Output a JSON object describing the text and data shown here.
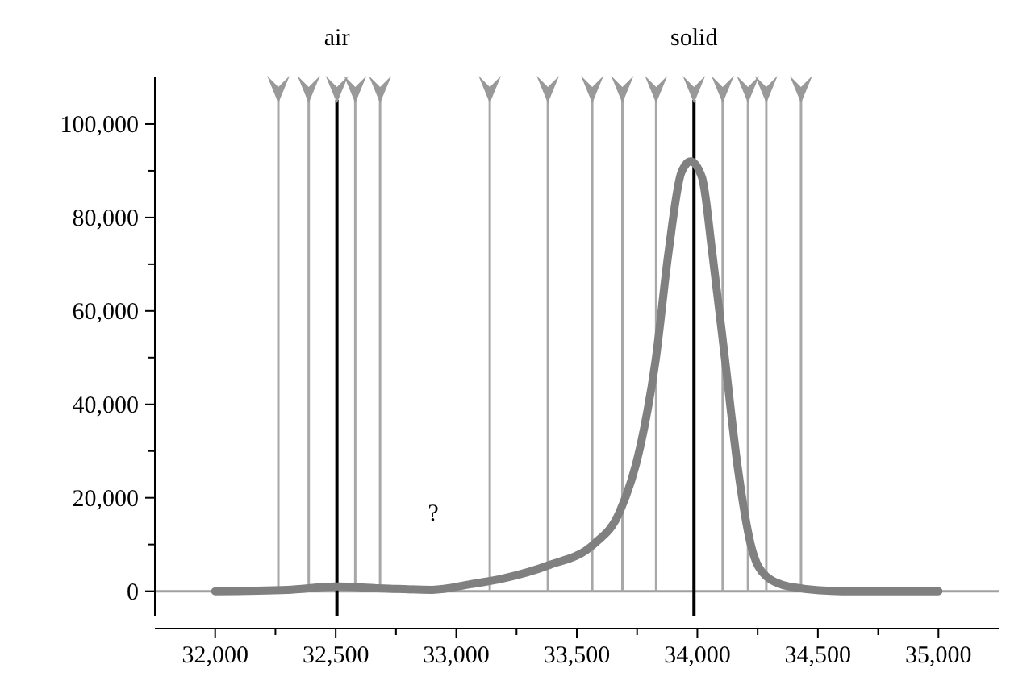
{
  "chart_data": {
    "type": "line",
    "x": [
      32000,
      32300,
      32500,
      32700,
      32900,
      33060,
      33200,
      33380,
      33571,
      33678,
      33763,
      33827,
      33880,
      33934,
      33972,
      34019,
      34062,
      34115,
      34168,
      34221,
      34285,
      34381,
      34600,
      35000
    ],
    "series": [
      {
        "color": "#808080",
        "values": [
          0,
          300,
          1000,
          600,
          300,
          1500,
          2800,
          5500,
          10100,
          17000,
          30900,
          49500,
          72400,
          89700,
          92000,
          88600,
          72400,
          49500,
          26300,
          10100,
          3200,
          1000,
          0,
          0
        ]
      }
    ],
    "xlim": [
      31750,
      35250
    ],
    "xticks": [
      {
        "value": 32000,
        "label": "32,000"
      },
      {
        "value": 32250,
        "label": null
      },
      {
        "value": 32500,
        "label": "32,500"
      },
      {
        "value": 32750,
        "label": null
      },
      {
        "value": 33000,
        "label": "33,000"
      },
      {
        "value": 33250,
        "label": null
      },
      {
        "value": 33500,
        "label": "33,500"
      },
      {
        "value": 33750,
        "label": null
      },
      {
        "value": 34000,
        "label": "34,000"
      },
      {
        "value": 34250,
        "label": null
      },
      {
        "value": 34500,
        "label": "34,500"
      },
      {
        "value": 34750,
        "label": null
      },
      {
        "value": 35000,
        "label": "35,000"
      }
    ],
    "ylim": [
      -8000,
      110000
    ],
    "yticks": [
      0,
      {
        "value": 10000,
        "label": null
      },
      {
        "value": 20000,
        "label": "20,000"
      },
      {
        "value": 30000,
        "label": null
      },
      {
        "value": 40000,
        "label": "40,000"
      },
      {
        "value": 50000,
        "label": null
      },
      {
        "value": 60000,
        "label": "60,000"
      },
      {
        "value": 70000,
        "label": null
      },
      {
        "value": 80000,
        "label": "80,000"
      },
      {
        "value": 90000,
        "label": null
      },
      {
        "value": 100000,
        "label": "100,000"
      }
    ],
    "grid": false,
    "marker": "none",
    "line_style": "solid",
    "ref_lines": [
      {
        "axis": "y",
        "value": 0,
        "color": "#a0a0a0"
      },
      {
        "axis": "x",
        "value": 32262,
        "color": "#a8a8a8"
      },
      {
        "axis": "x",
        "value": 32388,
        "color": "#a8a8a8"
      },
      {
        "axis": "x",
        "value": 32505,
        "color": "#000000",
        "label": "air"
      },
      {
        "axis": "x",
        "value": 32581,
        "color": "#a8a8a8"
      },
      {
        "axis": "x",
        "value": 32684,
        "color": "#a8a8a8"
      },
      {
        "axis": "x",
        "value": 33139,
        "color": "#a8a8a8"
      },
      {
        "axis": "x",
        "value": 33380,
        "color": "#a8a8a8"
      },
      {
        "axis": "x",
        "value": 33564,
        "color": "#a8a8a8"
      },
      {
        "axis": "x",
        "value": 33689,
        "color": "#a8a8a8"
      },
      {
        "axis": "x",
        "value": 33829,
        "color": "#a8a8a8"
      },
      {
        "axis": "x",
        "value": 33986,
        "color": "#000000",
        "label": "solid"
      },
      {
        "axis": "x",
        "value": 34105,
        "color": "#a8a8a8"
      },
      {
        "axis": "x",
        "value": 34210,
        "color": "#a8a8a8"
      },
      {
        "axis": "x",
        "value": 34286,
        "color": "#a8a8a8"
      },
      {
        "axis": "x",
        "value": 34430,
        "color": "#a8a8a8"
      }
    ],
    "annotations": [
      "?"
    ]
  }
}
